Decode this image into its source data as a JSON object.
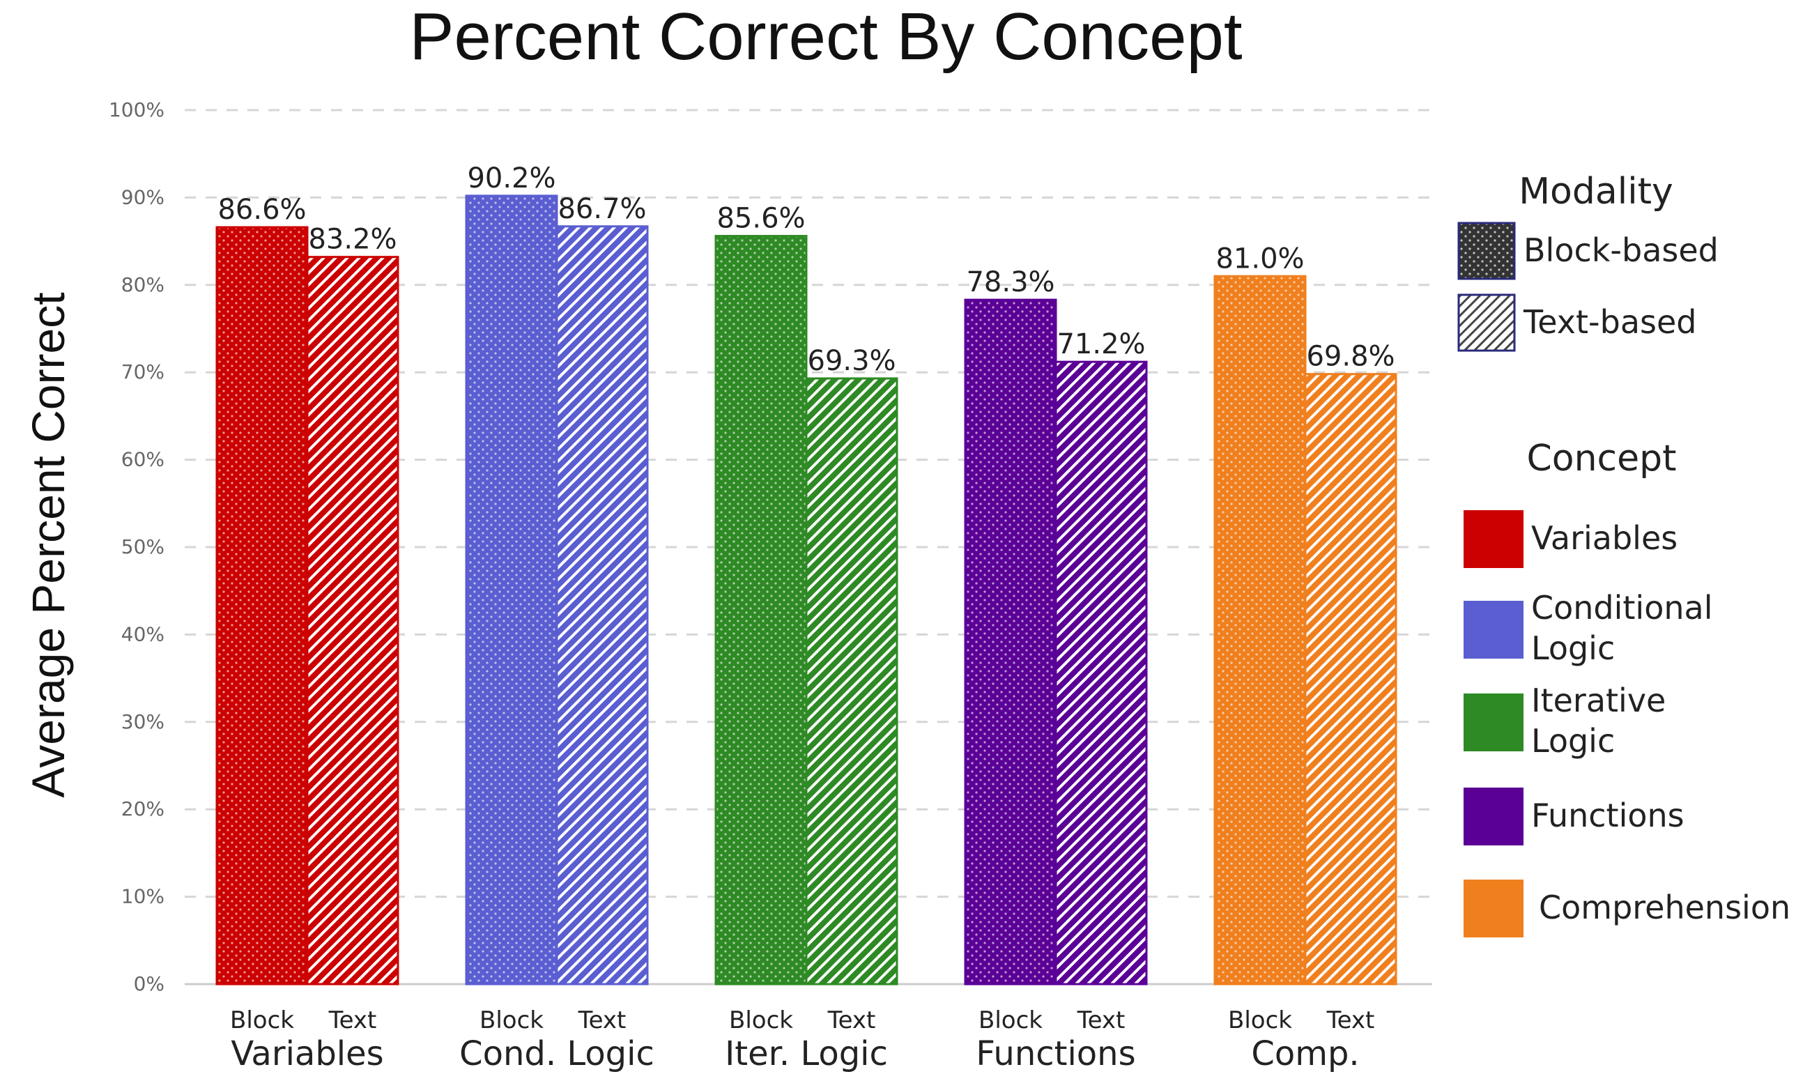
{
  "chart_data": {
    "type": "bar",
    "title": "Percent Correct By Concept",
    "ylabel": "Average Percent Correct",
    "xlabel": "",
    "ylim": [
      0,
      100
    ],
    "yticks": [
      "0%",
      "10%",
      "20%",
      "30%",
      "40%",
      "50%",
      "60%",
      "70%",
      "80%",
      "90%",
      "100%"
    ],
    "grid": true,
    "categories": [
      "Variables",
      "Cond. Logic",
      "Iter. Logic",
      "Functions",
      "Comp."
    ],
    "sub_labels": [
      "Block",
      "Text"
    ],
    "series": [
      {
        "name": "Block-based",
        "values": [
          86.6,
          90.2,
          85.6,
          78.3,
          81.0
        ],
        "labels": [
          "86.6%",
          "90.2%",
          "85.6%",
          "78.3%",
          "81.0%"
        ],
        "pattern": "dots"
      },
      {
        "name": "Text-based",
        "values": [
          83.2,
          86.7,
          69.3,
          71.2,
          69.8
        ],
        "labels": [
          "83.2%",
          "86.7%",
          "69.3%",
          "71.2%",
          "69.8%"
        ],
        "pattern": "stripes"
      }
    ],
    "concept_colors": [
      "#cc0000",
      "#5a5ed1",
      "#2e8a24",
      "#5b0096",
      "#f07f1e"
    ],
    "legend": {
      "placement": "right",
      "modality_title": "Modality",
      "modality_items": [
        "Block-based",
        "Text-based"
      ],
      "concept_title": "Concept",
      "concept_items": [
        [
          "Variables"
        ],
        [
          "Conditional",
          "Logic"
        ],
        [
          "Iterative",
          "Logic"
        ],
        [
          "Functions"
        ],
        [
          "Comprehension"
        ]
      ]
    }
  }
}
